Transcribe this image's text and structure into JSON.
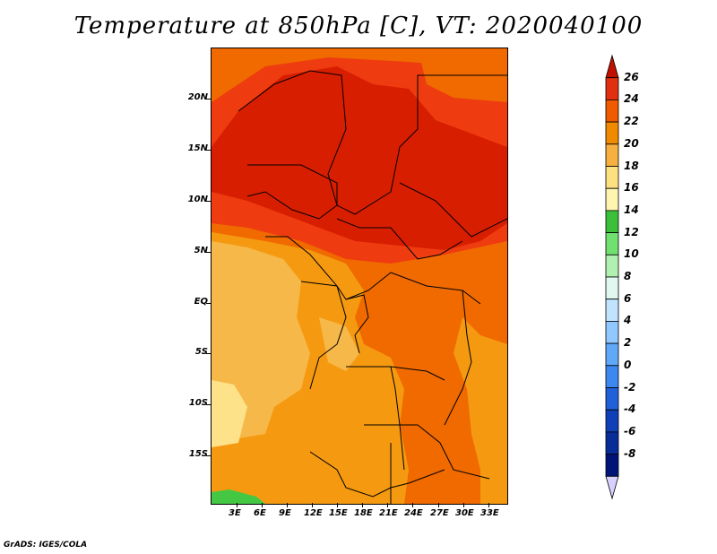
{
  "title": "Temperature at 850hPa [C], VT: 2020040100",
  "credit": "GrADS: IGES/COLA",
  "map": {
    "lat_labels": [
      "20N",
      "15N",
      "10N",
      "5N",
      "EQ",
      "5S",
      "10S",
      "15S"
    ],
    "lon_labels": [
      "3E",
      "6E",
      "9E",
      "12E",
      "15E",
      "18E",
      "21E",
      "24E",
      "27E",
      "30E",
      "33E"
    ]
  },
  "colorbar": {
    "labels": [
      "26",
      "24",
      "22",
      "20",
      "18",
      "16",
      "14",
      "12",
      "10",
      "8",
      "6",
      "4",
      "2",
      "0",
      "-2",
      "-4",
      "-6",
      "-8"
    ],
    "colors": [
      "#c01000",
      "#e03010",
      "#f05a00",
      "#f08a00",
      "#f5b040",
      "#fde080",
      "#fff4b0",
      "#3cc03c",
      "#70e070",
      "#b0f0b0",
      "#e0f8f0",
      "#c0e4ff",
      "#90c8ff",
      "#60a8f8",
      "#3c88f0",
      "#2060d8",
      "#1040b8",
      "#082c98",
      "#001478",
      "#d8d0ff"
    ]
  },
  "colors": {
    "c26": "#d81e00",
    "c24": "#ee3c10",
    "c22": "#f06a00",
    "c20": "#f59a10",
    "c18": "#f7b84a",
    "c16": "#fde28a",
    "c12": "#44c844"
  }
}
